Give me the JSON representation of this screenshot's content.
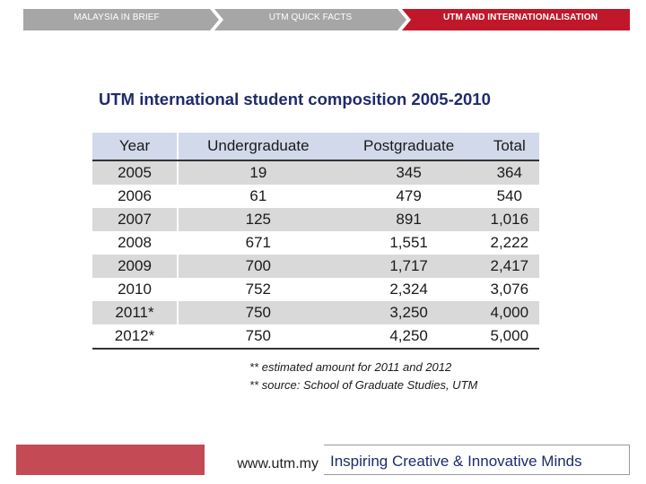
{
  "nav": {
    "tabs": [
      {
        "label": "MALAYSIA IN BRIEF",
        "active": false
      },
      {
        "label": "UTM QUICK FACTS",
        "active": false
      },
      {
        "label": "UTM AND INTERNATIONALISATION",
        "active": true
      }
    ],
    "colors": {
      "inactive": "#a6a6a6",
      "active": "#c0182a"
    }
  },
  "title": "UTM international student composition 2005-2010",
  "table": {
    "headers": [
      "Year",
      "Undergraduate",
      "Postgraduate",
      "Total"
    ],
    "rows": [
      [
        "2005",
        "19",
        "345",
        "364"
      ],
      [
        "2006",
        "61",
        "479",
        "540"
      ],
      [
        "2007",
        "125",
        "891",
        "1,016"
      ],
      [
        "2008",
        "671",
        "1,551",
        "2,222"
      ],
      [
        "2009",
        "700",
        "1,717",
        "2,417"
      ],
      [
        "2010",
        "752",
        "2,324",
        "3,076"
      ],
      [
        "2011*",
        "750",
        "3,250",
        "4,000"
      ],
      [
        "2012*",
        "750",
        "4,250",
        "5,000"
      ]
    ]
  },
  "notes": [
    "** estimated amount for 2011 and 2012",
    "** source: School of Graduate Studies, UTM"
  ],
  "footer": {
    "url": "www.utm.my",
    "tagline": "Inspiring Creative & Innovative Minds",
    "accent_color": "#c44a55"
  }
}
